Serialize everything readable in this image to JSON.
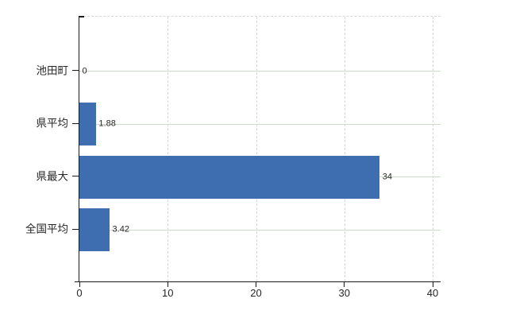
{
  "chart_data": {
    "type": "bar",
    "orientation": "horizontal",
    "title": "",
    "xlabel": "",
    "ylabel": "",
    "categories": [
      "池田町",
      "県平均",
      "県最大",
      "全国平均"
    ],
    "values": [
      0,
      1.88,
      34,
      3.42
    ],
    "value_labels": [
      "0",
      "1.88",
      "34",
      "3.42"
    ],
    "x_ticks": [
      0,
      10,
      20,
      30,
      40
    ],
    "x_tick_labels": [
      "0",
      "10",
      "20",
      "30",
      "40"
    ],
    "xlim": [
      0,
      40
    ],
    "grid": true,
    "legend": false,
    "bar_color": "#3e6eb0",
    "axis_color": "#1a1a1a",
    "label_color": "#262626"
  }
}
